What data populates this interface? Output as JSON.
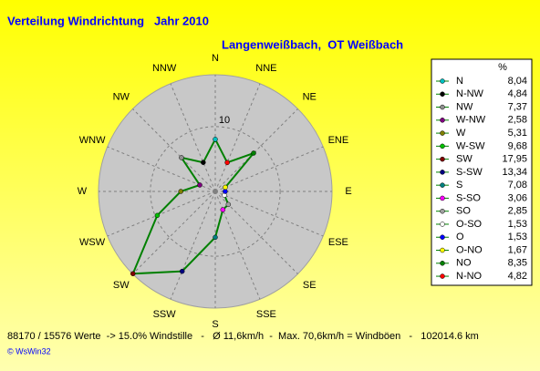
{
  "chart_data": {
    "type": "radar",
    "title": "Verteilung Windrichtung   Jahr 2010",
    "subtitle": "Langenweißbach,  OT Weißbach",
    "direction": "counterclockwise",
    "categories": [
      "N",
      "NNW",
      "NW",
      "WNW",
      "W",
      "WSW",
      "SW",
      "SSW",
      "S",
      "SSE",
      "SE",
      "ESE",
      "E",
      "ENE",
      "NE",
      "NNE"
    ],
    "legend_title": "%",
    "legend_labels": [
      "N",
      "N-NW",
      "NW",
      "W-NW",
      "W",
      "W-SW",
      "SW",
      "S-SW",
      "S",
      "S-SO",
      "SO",
      "O-SO",
      "O",
      "O-NO",
      "NO",
      "N-NO"
    ],
    "values": [
      8.04,
      4.84,
      7.37,
      2.58,
      5.31,
      9.68,
      17.95,
      13.34,
      7.08,
      3.06,
      2.85,
      1.53,
      1.53,
      1.67,
      8.35,
      4.82
    ],
    "value_labels": [
      "8,04",
      "4,84",
      "7,37",
      "2,58",
      "5,31",
      "9,68",
      "17,95",
      "13,34",
      "7,08",
      "3,06",
      "2,85",
      "1,53",
      "1,53",
      "1,67",
      "8,35",
      "4,82"
    ],
    "point_colors": [
      "#00c0c0",
      "#000000",
      "#909090",
      "#800080",
      "#808000",
      "#00c000",
      "#800000",
      "#000080",
      "#008080",
      "#ff00ff",
      "#a0a0a0",
      "#ffffff",
      "#0000ff",
      "#ffff00",
      "#008000",
      "#ff0000"
    ],
    "line_color": "#008000",
    "ylim": [
      0,
      18
    ],
    "yticks": [
      10
    ],
    "grid": true,
    "footer": "88170 / 15576 Werte  -> 15.0% Windstille   -   Ø 11,6km/h  -  Max. 70,6km/h = Windböen   -   102014.6 km",
    "credit": "© WsWin32"
  }
}
